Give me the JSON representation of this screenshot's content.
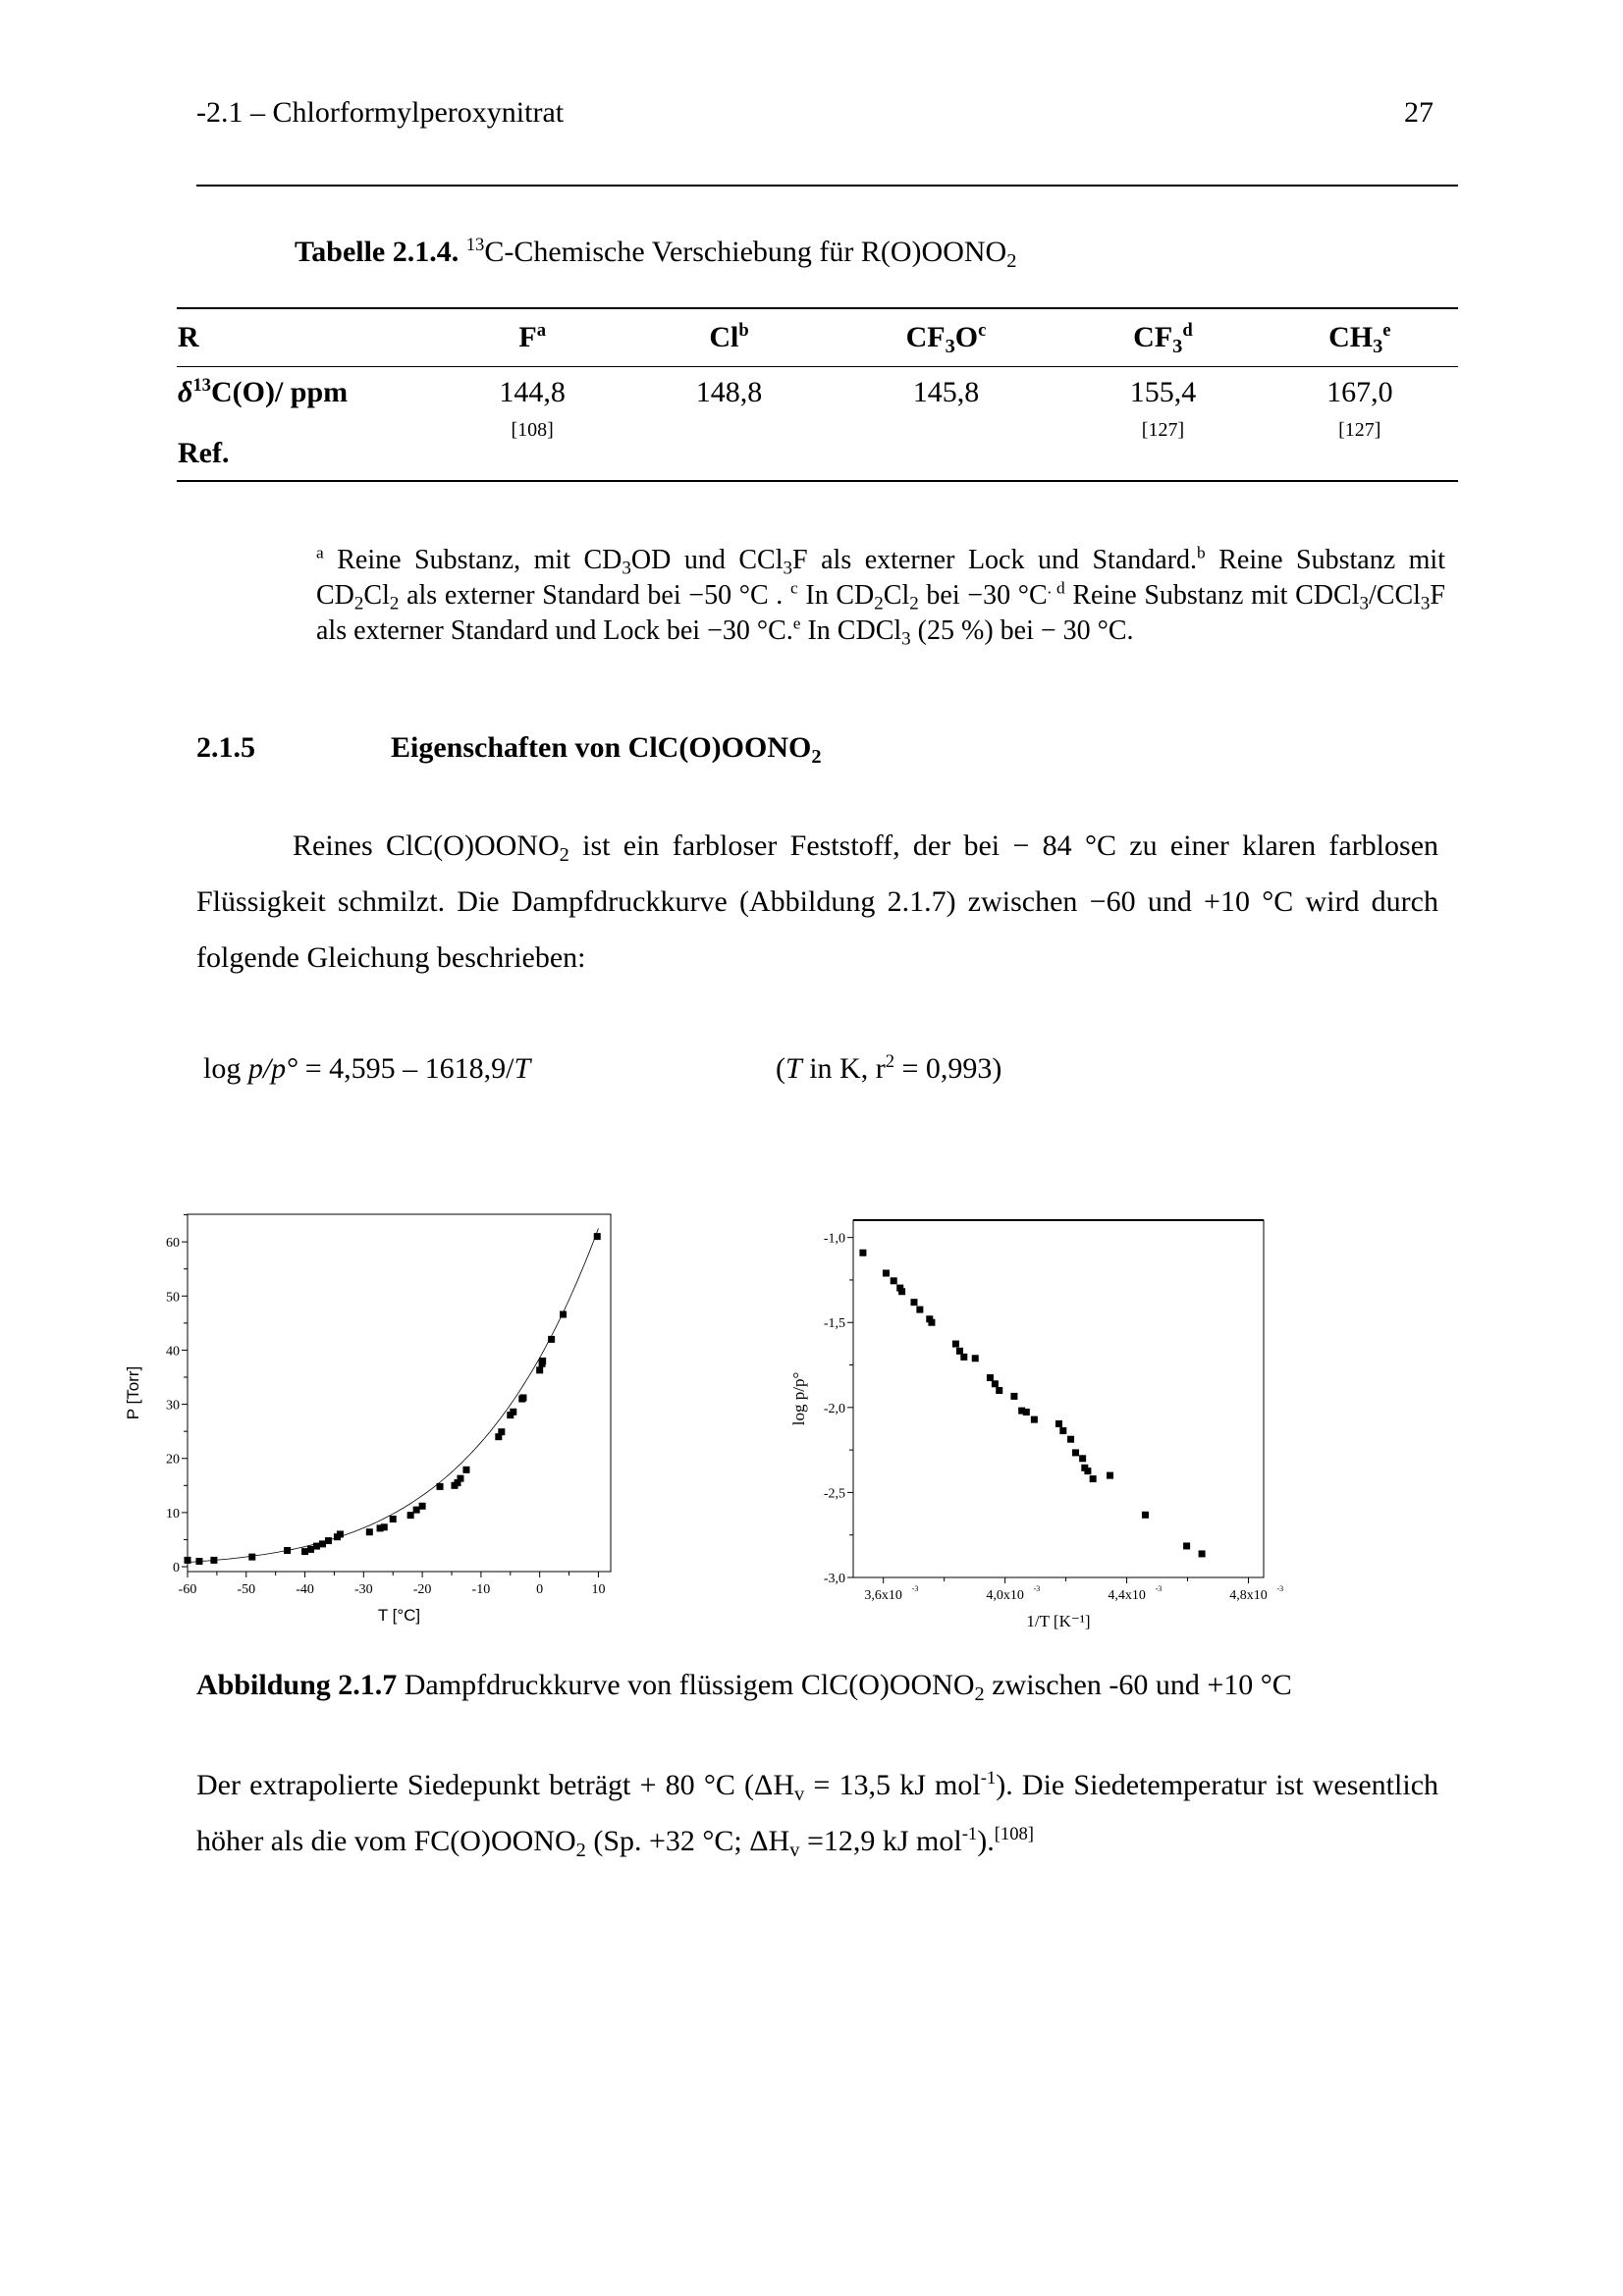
{
  "header": {
    "running_title": "-2.1 – Chlorformylperoxynitrat",
    "page_number": "27"
  },
  "table": {
    "caption_bold": "Tabelle 2.1.4.",
    "caption_sup": "13",
    "caption_text": "C-Chemische Verschiebung für R(O)OONO",
    "caption_sub": "2",
    "columns": [
      {
        "base": "R",
        "sub": "",
        "sup": ""
      },
      {
        "base": "F",
        "sub": "",
        "sup": "a"
      },
      {
        "base": "Cl",
        "sub": "",
        "sup": "b"
      },
      {
        "base": "CF",
        "sub": "3",
        "tail": "O",
        "sup": "c"
      },
      {
        "base": "CF",
        "sub": "3",
        "sup": "d"
      },
      {
        "base": "CH",
        "sub": "3",
        "sup": "e"
      }
    ],
    "row_shift_label_delta": "δ",
    "row_shift_label_sup": "13",
    "row_shift_label_rest": "C(O)/ ppm",
    "shifts": [
      "144,8",
      "148,8",
      "145,8",
      "155,4",
      "167,0"
    ],
    "row_ref_label": "Ref.",
    "refs": [
      "[108]",
      "",
      "",
      "[127]",
      "[127]"
    ]
  },
  "footnotes": {
    "a_mark": "a",
    "a_text": " Reine Substanz, mit CD",
    "a_sub1": "3",
    "a_text2": "OD und CCl",
    "a_sub2": "3",
    "a_text3": "F als externer Lock und Standard.",
    "b_mark": "b",
    "b_text": " Reine Substanz mit CD",
    "b_sub1": "2",
    "b_text2": "Cl",
    "b_sub2": "2",
    "b_text3": " als externer Standard bei −50 °C . ",
    "c_mark": "c",
    "c_text": " In CD",
    "c_sub1": "2",
    "c_text2": "Cl",
    "c_sub2": "2",
    "c_text3": " bei −30 °C",
    "d_mark": ". d",
    "d_text": " Reine Substanz mit CDCl",
    "d_sub1": "3",
    "d_text2": "/CCl",
    "d_sub2": "3",
    "d_text3": "F als externer Standard und Lock bei −30 °C.",
    "e_mark": "e",
    "e_text": " In CDCl",
    "e_sub1": "3",
    "e_text2": " (25 %) bei − 30 °C."
  },
  "section": {
    "number": "2.1.5",
    "title": "Eigenschaften von ClC(O)OONO",
    "title_sub": "2"
  },
  "paragraph1": {
    "t1": "Reines ClC(O)OONO",
    "sub": "2",
    "t2": " ist ein farbloser Feststoff, der bei − 84 °C zu einer klaren farblosen Flüssigkeit schmilzt. Die Dampfdruckkurve (Abbildung 2.1.7) zwischen −60 und +10 °C wird durch folgende Gleichung beschrieben:"
  },
  "equation": {
    "lhs_log": "log ",
    "lhs_var": "p/p°",
    "eq": " = 4,595 – 1618,9/",
    "T": "T",
    "cond_open": "(",
    "cond_T": "T",
    "cond_mid": " in K, r",
    "cond_sup": "2",
    "cond_end": " = 0,993)"
  },
  "figure_caption": {
    "bold": "Abbildung 2.1.7",
    "text": " Dampfdruckkurve von flüssigem ClC(O)OONO",
    "sub": "2",
    "text2": " zwischen -60 und +10 °C"
  },
  "paragraph2": {
    "t1": "Der extrapolierte Siedepunkt beträgt + 80 °C (ΔH",
    "s1": "v",
    "t2": " = 13,5 kJ mol",
    "p1": "-1",
    "t3": "). Die Siedetemperatur ist wesentlich höher als die vom FC(O)OONO",
    "s2": "2",
    "t4": " (Sp. +32 °C; ΔH",
    "s3": "v",
    "t5": " =12,9 kJ mol",
    "p2": "-1",
    "t6": ").",
    "ref": "[108]"
  },
  "chart_data": [
    {
      "type": "scatter",
      "title": "",
      "xlabel": "T [°C]",
      "ylabel": "P [Torr]",
      "xlim": [
        -60,
        12.1
      ],
      "ylim": [
        -0.9,
        65.1
      ],
      "xticks": [
        -60,
        -50,
        -40,
        -30,
        -20,
        -10,
        0,
        10
      ],
      "xtick_labels": [
        "-60",
        "-50",
        "-40",
        "-30",
        "-20",
        "-10",
        "0",
        "10"
      ],
      "yticks": [
        0,
        10,
        20,
        30,
        40,
        50,
        60
      ],
      "ytick_labels": [
        "0",
        "10",
        "20",
        "30",
        "40",
        "50",
        "60"
      ],
      "grid": false,
      "fit": "exponential (from log p/p° = 4,595 – 1618,9/T)",
      "points": [
        [
          -60,
          1.2
        ],
        [
          -58,
          1.0
        ],
        [
          -55.5,
          1.2
        ],
        [
          -49,
          1.8
        ],
        [
          -43,
          3.0
        ],
        [
          -40,
          2.8
        ],
        [
          -39,
          3.2
        ],
        [
          -38,
          3.8
        ],
        [
          -37,
          4.2
        ],
        [
          -36,
          4.8
        ],
        [
          -34.5,
          5.5
        ],
        [
          -34,
          6.0
        ],
        [
          -29,
          6.4
        ],
        [
          -27.2,
          7.1
        ],
        [
          -26.5,
          7.3
        ],
        [
          -25,
          8.8
        ],
        [
          -22,
          9.5
        ],
        [
          -21,
          10.5
        ],
        [
          -20,
          11.2
        ],
        [
          -17,
          14.8
        ],
        [
          -14.5,
          15.0
        ],
        [
          -14,
          15.5
        ],
        [
          -13.5,
          16.3
        ],
        [
          -12.5,
          17.9
        ],
        [
          -7,
          24.0
        ],
        [
          -6.5,
          24.9
        ],
        [
          -5,
          28.0
        ],
        [
          -4.5,
          28.6
        ],
        [
          -3,
          31.0
        ],
        [
          -2.8,
          31.2
        ],
        [
          0,
          36.3
        ],
        [
          0.4,
          37.5
        ],
        [
          0.5,
          38.0
        ],
        [
          2,
          42.0
        ],
        [
          4,
          46.6
        ],
        [
          9.8,
          61.0
        ]
      ]
    },
    {
      "type": "scatter",
      "title": "",
      "xlabel": "1/T [K⁻¹]",
      "ylabel": "log p/p°",
      "xlim": [
        3.501,
        4.85
      ],
      "x_scale": "x10^-3",
      "ylim": [
        -3.0,
        -0.898
      ],
      "xticks": [
        3.6,
        4.0,
        4.4,
        4.8
      ],
      "xtick_labels": [
        "3,6x10",
        "4,0x10",
        "4,4x10",
        "4,8x10"
      ],
      "xtick_exp": "-3",
      "yticks": [
        -1.0,
        -1.5,
        -2.0,
        -2.5,
        -3.0
      ],
      "ytick_labels": [
        "-1,0",
        "-1,5",
        "-2,0",
        "-2,5",
        "-3,0"
      ],
      "grid": false,
      "fit_line": {
        "intercept": 4.595,
        "slope_per_1e-3": -1.6189
      },
      "points": [
        [
          3.533,
          -1.09
        ],
        [
          3.609,
          -1.21
        ],
        [
          3.634,
          -1.255
        ],
        [
          3.655,
          -1.297
        ],
        [
          3.661,
          -1.318
        ],
        [
          3.701,
          -1.381
        ],
        [
          3.72,
          -1.424
        ],
        [
          3.752,
          -1.48
        ],
        [
          3.759,
          -1.5
        ],
        [
          3.838,
          -1.626
        ],
        [
          3.851,
          -1.668
        ],
        [
          3.865,
          -1.703
        ],
        [
          3.902,
          -1.711
        ],
        [
          3.951,
          -1.825
        ],
        [
          3.967,
          -1.861
        ],
        [
          3.981,
          -1.9
        ],
        [
          4.03,
          -1.934
        ],
        [
          4.055,
          -2.019
        ],
        [
          4.07,
          -2.027
        ],
        [
          4.096,
          -2.071
        ],
        [
          4.177,
          -2.096
        ],
        [
          4.191,
          -2.137
        ],
        [
          4.216,
          -2.187
        ],
        [
          4.232,
          -2.266
        ],
        [
          4.255,
          -2.3
        ],
        [
          4.262,
          -2.355
        ],
        [
          4.272,
          -2.374
        ],
        [
          4.289,
          -2.42
        ],
        [
          4.345,
          -2.4
        ],
        [
          4.461,
          -2.632
        ],
        [
          4.597,
          -2.815
        ],
        [
          4.647,
          -2.861
        ]
      ]
    }
  ]
}
